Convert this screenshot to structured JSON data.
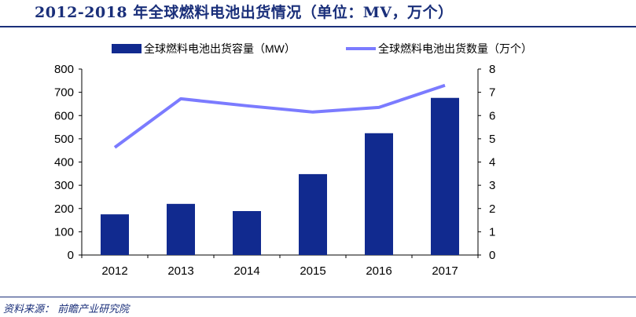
{
  "title": "2012-2018 年全球燃料电池出货情况（单位：MV，万个）",
  "source": "资料来源： 前瞻产业研究院",
  "chart_data": {
    "type": "bar",
    "categories": [
      "2012",
      "2013",
      "2014",
      "2015",
      "2016",
      "2017"
    ],
    "series": [
      {
        "name": "全球燃料电池出货容量（MW）",
        "type": "bar",
        "axis": "left",
        "color": "#112a8f",
        "values": [
          175,
          220,
          189,
          348,
          524,
          676
        ]
      },
      {
        "name": "全球燃料电池出货数量（万个）",
        "type": "line",
        "axis": "right",
        "color": "#7b7bff",
        "values": [
          4.63,
          6.72,
          6.42,
          6.15,
          6.35,
          7.3
        ]
      }
    ],
    "ylim": [
      0,
      800
    ],
    "yticks": [
      "0",
      "100",
      "200",
      "300",
      "400",
      "500",
      "600",
      "700",
      "800"
    ],
    "y2lim": [
      0,
      8
    ],
    "y2ticks": [
      "0",
      "1",
      "2",
      "3",
      "4",
      "5",
      "6",
      "7",
      "8"
    ],
    "legend": "top",
    "grid": false
  }
}
